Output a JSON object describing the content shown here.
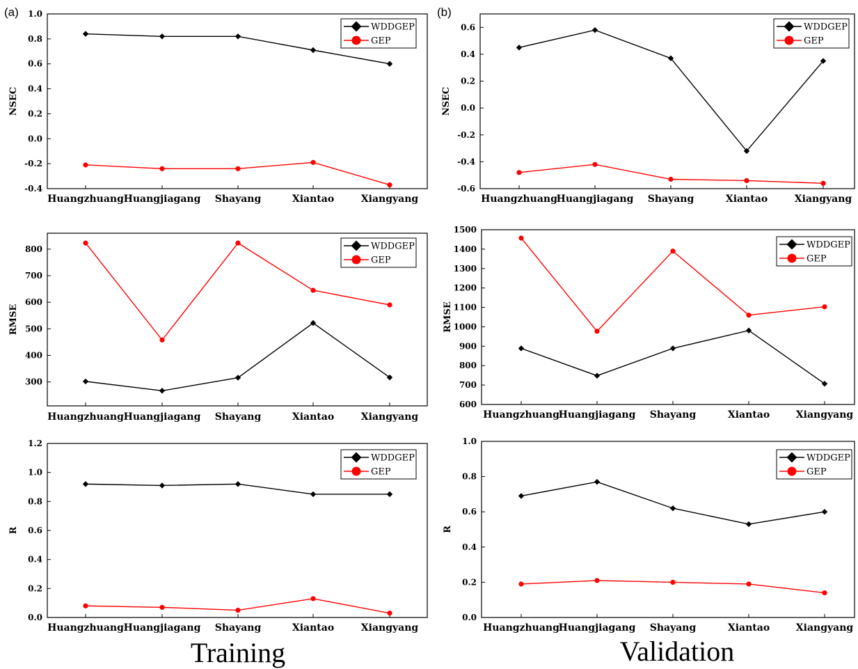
{
  "panel_labels": {
    "training": "(a)",
    "validation": "(b)"
  },
  "captions": {
    "training": "Training",
    "validation": "Validation"
  },
  "colors": {
    "WDDGEP": "#000000",
    "GEP": "#ff0000"
  },
  "chart_data": [
    {
      "id": "train-nsec",
      "type": "line",
      "ylabel": "NSEC",
      "categories": [
        "Huangzhuang",
        "Huangjiagang",
        "Shayang",
        "Xiantao",
        "Xiangyang"
      ],
      "ylim": [
        -0.4,
        1.0
      ],
      "yticks": [
        "-0.4",
        "-0.2",
        "0.0",
        "0.2",
        "0.4",
        "0.6",
        "0.8",
        "1.0"
      ],
      "series": [
        {
          "name": "WDDGEP",
          "values": [
            0.84,
            0.82,
            0.82,
            0.71,
            0.6
          ]
        },
        {
          "name": "GEP",
          "values": [
            -0.21,
            -0.24,
            -0.24,
            -0.19,
            -0.37
          ]
        }
      ],
      "legend": "top-right"
    },
    {
      "id": "val-nsec",
      "type": "line",
      "ylabel": "NSEC",
      "categories": [
        "Huangzhuang",
        "Huangjiagang",
        "Shayang",
        "Xiantao",
        "Xiangyang"
      ],
      "ylim": [
        -0.6,
        0.7
      ],
      "yticks": [
        "-0.6",
        "-0.4",
        "-0.2",
        "0.0",
        "0.2",
        "0.4",
        "0.6"
      ],
      "series": [
        {
          "name": "WDDGEP",
          "values": [
            0.45,
            0.58,
            0.37,
            -0.32,
            0.35
          ]
        },
        {
          "name": "GEP",
          "values": [
            -0.48,
            -0.42,
            -0.53,
            -0.54,
            -0.56
          ]
        }
      ],
      "legend": "top-right"
    },
    {
      "id": "train-rmse",
      "type": "line",
      "ylabel": "RMSE",
      "categories": [
        "Huangzhuang",
        "Huangjiagang",
        "Shayang",
        "Xiantao",
        "Xiangyang"
      ],
      "ylim": [
        210,
        860
      ],
      "yticks": [
        "300",
        "400",
        "500",
        "600",
        "700",
        "800"
      ],
      "series": [
        {
          "name": "WDDGEP",
          "values": [
            302,
            267,
            316,
            522,
            317
          ]
        },
        {
          "name": "GEP",
          "values": [
            823,
            458,
            823,
            645,
            590
          ]
        }
      ],
      "legend": "top-right"
    },
    {
      "id": "val-rmse",
      "type": "line",
      "ylabel": "RMSE",
      "categories": [
        "Huangzhuang",
        "Huangjiagang",
        "Shayang",
        "Xiantao",
        "Xiangyang"
      ],
      "ylim": [
        600,
        1500
      ],
      "yticks": [
        "600",
        "700",
        "800",
        "900",
        "1000",
        "1100",
        "1200",
        "1300",
        "1400",
        "1500"
      ],
      "series": [
        {
          "name": "WDDGEP",
          "values": [
            889,
            748,
            889,
            981,
            707
          ]
        },
        {
          "name": "GEP",
          "values": [
            1457,
            977,
            1390,
            1060,
            1103
          ]
        }
      ],
      "legend": "top-right"
    },
    {
      "id": "train-r",
      "type": "line",
      "ylabel": "R",
      "categories": [
        "Huangzhuang",
        "Huangjiagang",
        "Shayang",
        "Xiantao",
        "Xiangyang"
      ],
      "ylim": [
        0.0,
        1.2
      ],
      "yticks": [
        "0.0",
        "0.2",
        "0.4",
        "0.6",
        "0.8",
        "1.0",
        "1.2"
      ],
      "series": [
        {
          "name": "WDDGEP",
          "values": [
            0.92,
            0.91,
            0.92,
            0.85,
            0.85
          ]
        },
        {
          "name": "GEP",
          "values": [
            0.08,
            0.07,
            0.05,
            0.13,
            0.03
          ]
        }
      ],
      "legend": "top-right"
    },
    {
      "id": "val-r",
      "type": "line",
      "ylabel": "R",
      "categories": [
        "Huangzhuang",
        "Huangjiagang",
        "Shayang",
        "Xiantao",
        "Xiangyang"
      ],
      "ylim": [
        0.0,
        1.0
      ],
      "yticks": [
        "0.0",
        "0.2",
        "0.4",
        "0.6",
        "0.8",
        "1.0"
      ],
      "series": [
        {
          "name": "WDDGEP",
          "values": [
            0.69,
            0.77,
            0.62,
            0.53,
            0.6
          ]
        },
        {
          "name": "GEP",
          "values": [
            0.19,
            0.21,
            0.2,
            0.19,
            0.14
          ]
        }
      ],
      "legend": "top-right"
    }
  ]
}
